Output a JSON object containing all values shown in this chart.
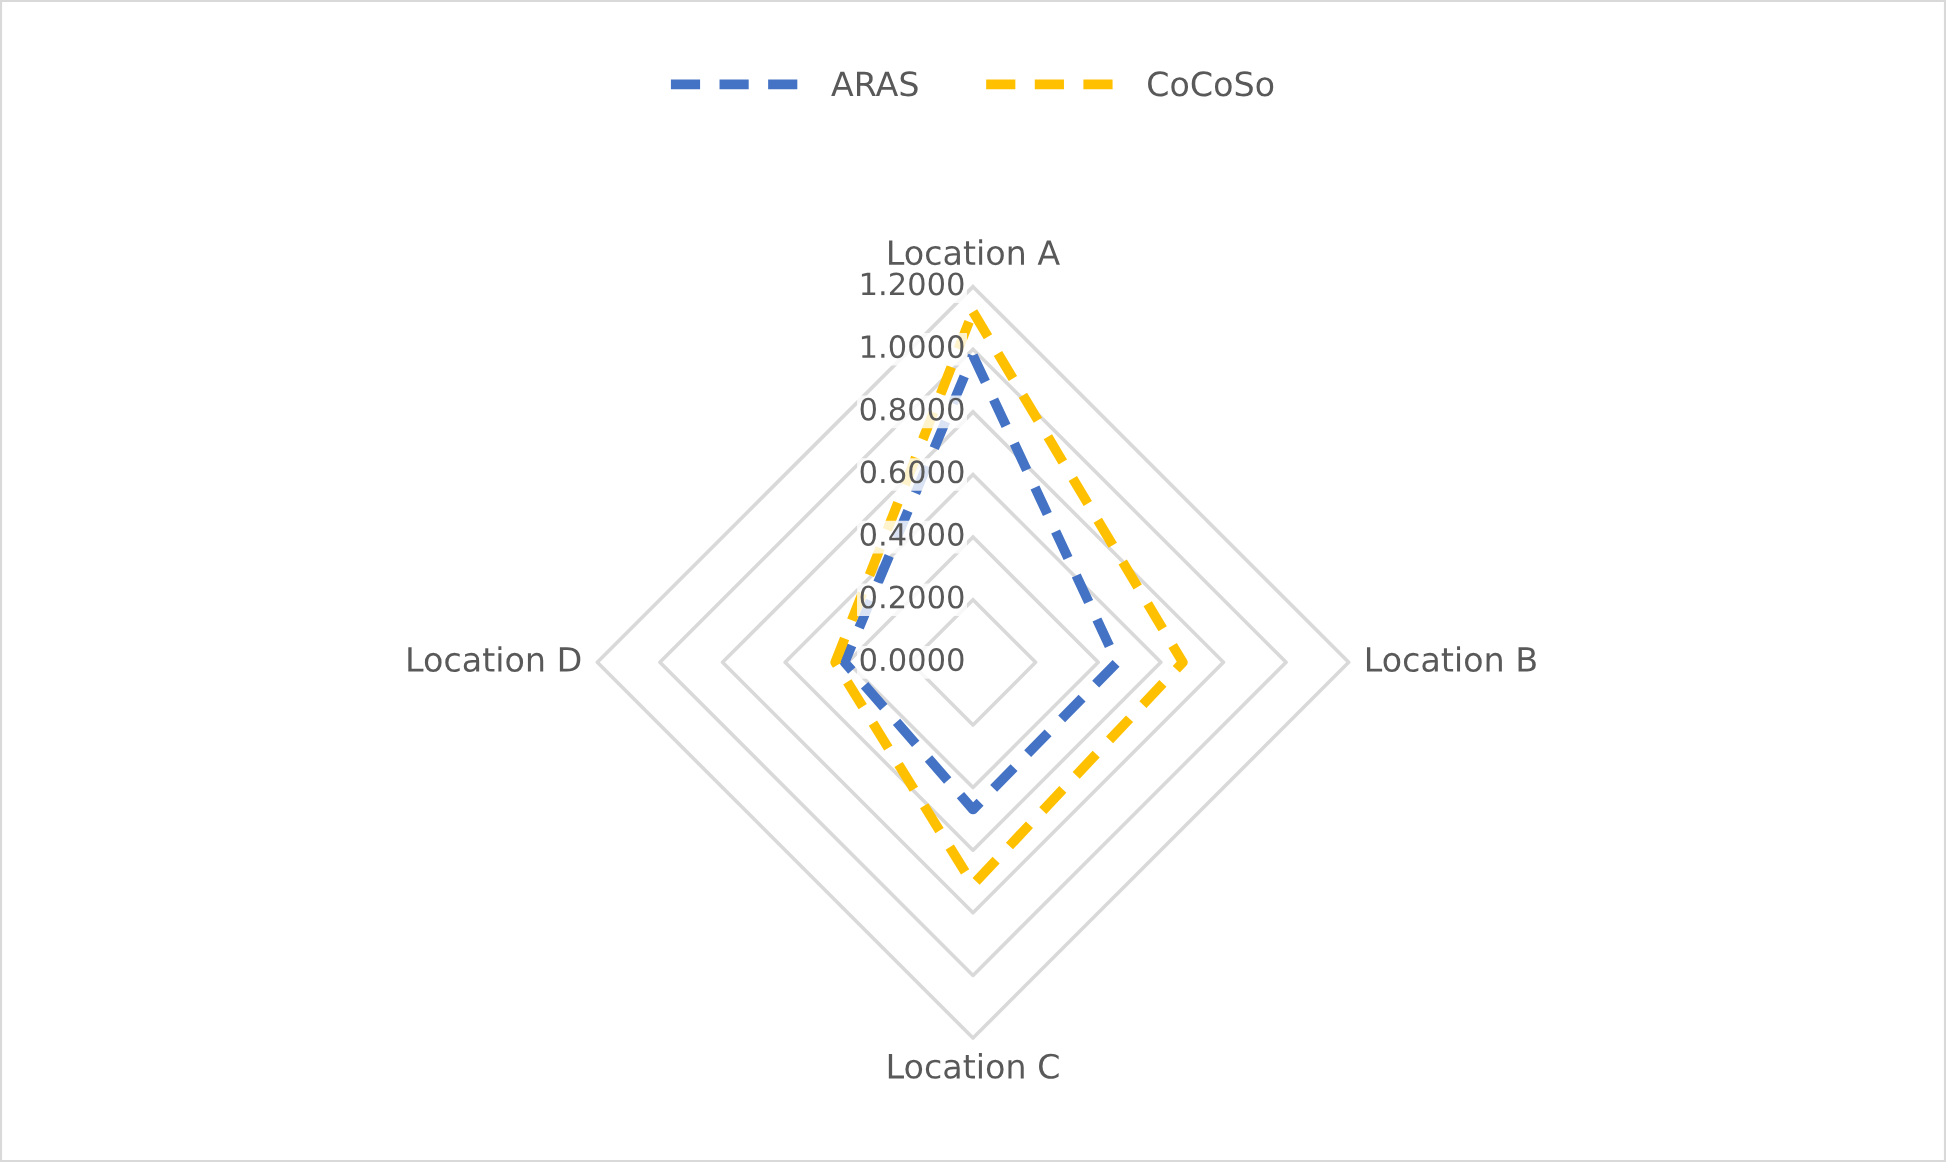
{
  "chart_data": {
    "type": "radar",
    "categories": [
      "Location A",
      "Location B",
      "Location C",
      "Location D"
    ],
    "series": [
      {
        "name": "ARAS",
        "color": "#4472c4",
        "values": [
          0.98,
          0.46,
          0.47,
          0.41
        ]
      },
      {
        "name": "CoCoSo",
        "color": "#ffc000",
        "values": [
          1.12,
          0.67,
          0.71,
          0.44
        ]
      }
    ],
    "ylim": [
      0,
      1.2
    ],
    "yticks": [
      {
        "value": 0,
        "label": "0.0000"
      },
      {
        "value": 0.2,
        "label": "0.2000"
      },
      {
        "value": 0.4,
        "label": "0.4000"
      },
      {
        "value": 0.6,
        "label": "0.6000"
      },
      {
        "value": 0.8,
        "label": "0.8000"
      },
      {
        "value": 1.0,
        "label": "1.0000"
      },
      {
        "value": 1.2,
        "label": "1.2000"
      }
    ],
    "grid": true,
    "legend": "top",
    "line_style": "dashed",
    "marker": "none"
  }
}
